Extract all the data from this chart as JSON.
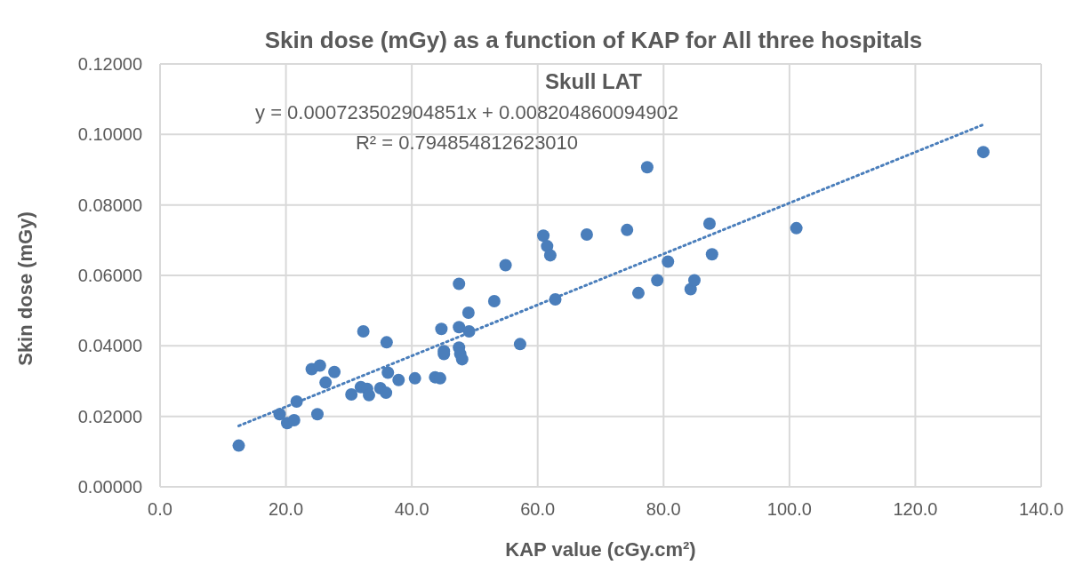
{
  "chart_data": {
    "type": "scatter",
    "title": "Skin dose (mGy) as a function of KAP for All three hospitals",
    "subtitle": "Skull LAT",
    "xlabel": "KAP value (cGy.cm²)",
    "ylabel": "Skin dose (mGy)",
    "annotations": [
      "y = 0.000723502904851x + 0.008204860094902",
      "R² = 0.794854812623010"
    ],
    "xlim": [
      0,
      140
    ],
    "xticks": [
      {
        "value": 0,
        "label": "0.0"
      },
      {
        "value": 20,
        "label": "20.0"
      },
      {
        "value": 40,
        "label": "40.0"
      },
      {
        "value": 60,
        "label": "60.0"
      },
      {
        "value": 80,
        "label": "80.0"
      },
      {
        "value": 100,
        "label": "100.0"
      },
      {
        "value": 120,
        "label": "120.0"
      },
      {
        "value": 140,
        "label": "140.0"
      }
    ],
    "ylim": [
      0,
      0.12
    ],
    "yticks": [
      {
        "value": 0,
        "label": "0.00000"
      },
      {
        "value": 0.02,
        "label": "0.02000"
      },
      {
        "value": 0.04,
        "label": "0.04000"
      },
      {
        "value": 0.06,
        "label": "0.06000"
      },
      {
        "value": 0.08,
        "label": "0.08000"
      },
      {
        "value": 0.1,
        "label": "0.10000"
      },
      {
        "value": 0.12,
        "label": "0.12000"
      }
    ],
    "grid": true,
    "series": [
      {
        "color": "#4a7ebb",
        "marker": "circle",
        "x": [
          12.5,
          19.0,
          20.2,
          21.3,
          21.7,
          24.1,
          25.4,
          25.0,
          26.3,
          27.7,
          30.4,
          31.9,
          32.3,
          32.9,
          33.2,
          35.0,
          36.0,
          36.2,
          35.9,
          37.9,
          40.5,
          43.7,
          44.5,
          44.7,
          45.1,
          45.1,
          47.5,
          47.5,
          47.5,
          47.7,
          48.0,
          49.0,
          49.1,
          53.1,
          54.9,
          57.2,
          60.9,
          61.5,
          62.0,
          62.8,
          67.8,
          74.2,
          77.4,
          76.0,
          79.0,
          80.7,
          84.3,
          84.9,
          87.3,
          87.7,
          101.1,
          130.8
        ],
        "values": [
          0.0117,
          0.0206,
          0.0181,
          0.0189,
          0.0242,
          0.0334,
          0.0344,
          0.0206,
          0.0296,
          0.0326,
          0.0262,
          0.0283,
          0.0441,
          0.0278,
          0.026,
          0.028,
          0.041,
          0.0324,
          0.0267,
          0.0303,
          0.0308,
          0.0311,
          0.0308,
          0.0448,
          0.0377,
          0.0385,
          0.0576,
          0.0453,
          0.0395,
          0.0377,
          0.0362,
          0.0494,
          0.0441,
          0.0527,
          0.0629,
          0.0405,
          0.0713,
          0.0683,
          0.0657,
          0.0532,
          0.0716,
          0.0729,
          0.0907,
          0.055,
          0.0586,
          0.0639,
          0.0561,
          0.0586,
          0.0747,
          0.066,
          0.0734,
          0.095
        ]
      },
      {
        "type": "line",
        "color": "#4a7ebb",
        "marker": "none",
        "line_style": "dotted",
        "x": [
          12.5,
          130.8
        ],
        "values": [
          0.0173,
          0.1028
        ]
      }
    ]
  }
}
